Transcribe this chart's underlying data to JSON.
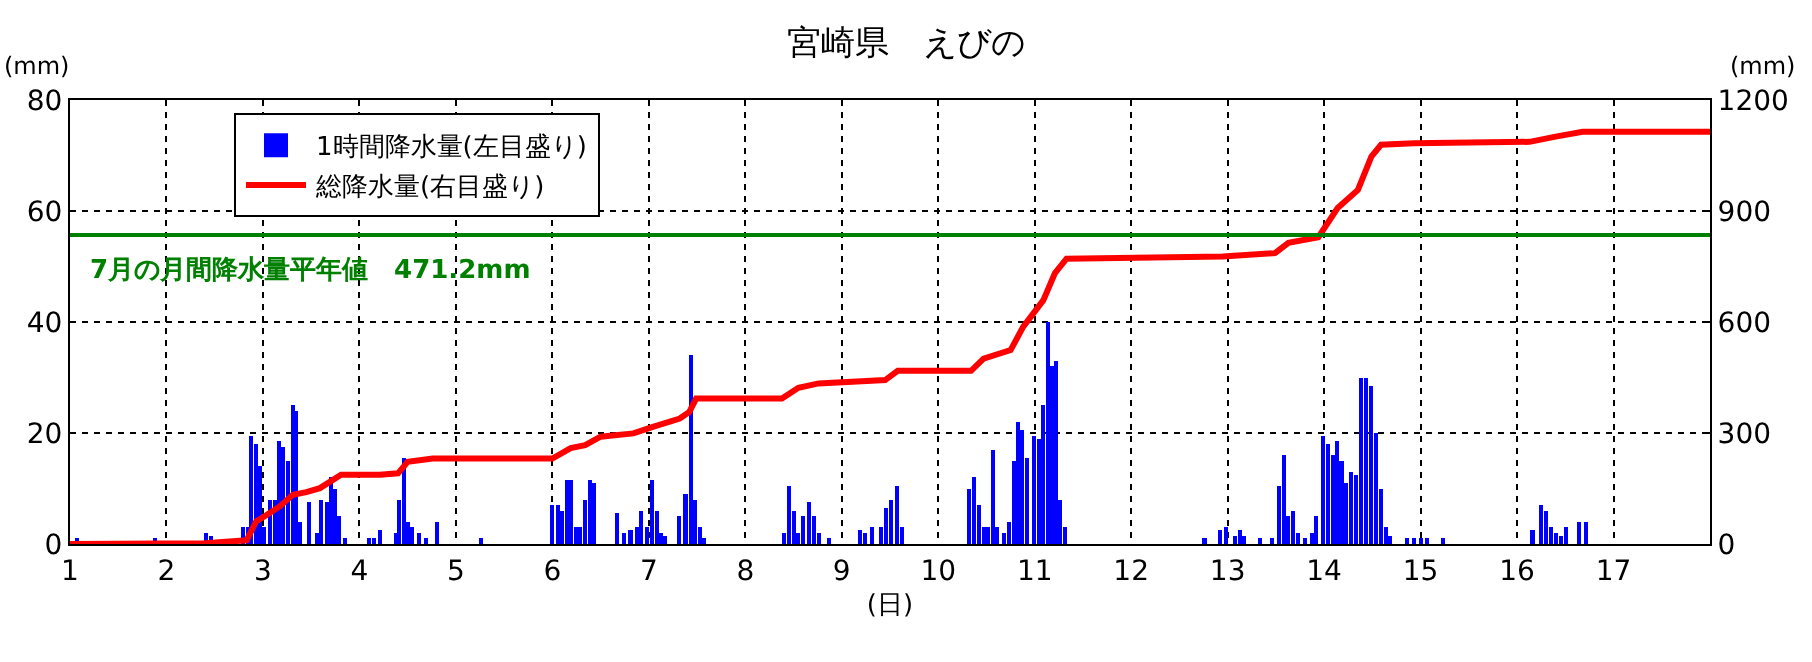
{
  "chart_data": {
    "type": "bar",
    "title": "宮崎県　えびの",
    "xlabel": "(日)",
    "ylabel": "(mm)",
    "y2label": "(mm)",
    "xlim": [
      1,
      18
    ],
    "xticks": [
      1,
      2,
      3,
      4,
      5,
      6,
      7,
      8,
      9,
      10,
      11,
      12,
      13,
      14,
      15,
      16,
      17
    ],
    "ylim": [
      0,
      80
    ],
    "yticks": [
      0,
      20,
      40,
      60,
      80
    ],
    "y2lim": [
      0,
      1200
    ],
    "y2ticks": [
      0,
      300,
      600,
      900,
      1200
    ],
    "grid": true,
    "legend": "top left",
    "ref_lines": [
      {
        "axis": "y2",
        "value": 835,
        "label": "7月の月間降水量平年値　471.2mm",
        "color": "#008000",
        "line_style": "solid"
      }
    ],
    "series": [
      {
        "name": "1時間降水量(左目盛り)",
        "color": "#0000ff",
        "x": [
          1.07,
          1.88,
          2.41,
          2.46,
          2.79,
          2.84,
          2.88,
          2.93,
          2.97,
          3.01,
          3.07,
          3.12,
          3.17,
          3.21,
          3.26,
          3.31,
          3.34,
          3.38,
          3.48,
          3.56,
          3.6,
          3.66,
          3.71,
          3.75,
          3.79,
          3.85,
          4.1,
          4.15,
          4.21,
          4.38,
          4.41,
          4.46,
          4.5,
          4.55,
          4.62,
          4.69,
          4.8,
          5.26,
          6.0,
          6.06,
          6.1,
          6.15,
          6.19,
          6.24,
          6.29,
          6.34,
          6.39,
          6.43,
          6.67,
          6.74,
          6.81,
          6.88,
          6.92,
          6.98,
          7.03,
          7.08,
          7.13,
          7.17,
          7.31,
          7.38,
          7.44,
          7.48,
          7.53,
          7.57,
          8.4,
          8.45,
          8.5,
          8.55,
          8.6,
          8.66,
          8.71,
          8.76,
          8.87,
          9.19,
          9.24,
          9.31,
          9.41,
          9.46,
          9.51,
          9.57,
          9.62,
          10.32,
          10.37,
          10.42,
          10.47,
          10.52,
          10.57,
          10.61,
          10.68,
          10.73,
          10.79,
          10.83,
          10.87,
          10.92,
          10.99,
          11.04,
          11.09,
          11.14,
          11.18,
          11.22,
          11.26,
          11.31,
          12.76,
          12.92,
          12.98,
          13.08,
          13.13,
          13.17,
          13.34,
          13.46,
          13.53,
          13.58,
          13.63,
          13.68,
          13.73,
          13.8,
          13.87,
          13.92,
          13.99,
          14.04,
          14.09,
          14.13,
          14.18,
          14.23,
          14.28,
          14.33,
          14.38,
          14.43,
          14.49,
          14.54,
          14.59,
          14.64,
          14.68,
          14.86,
          14.93,
          15.0,
          15.07,
          15.23,
          16.16,
          16.25,
          16.3,
          16.35,
          16.4,
          16.46,
          16.51,
          16.64,
          16.71
        ],
        "values": [
          1,
          1,
          2,
          1.5,
          3,
          3,
          19.5,
          18,
          14,
          3,
          8,
          8,
          18.5,
          17.5,
          15,
          25,
          24,
          4,
          7.5,
          2,
          8,
          7.5,
          12,
          10,
          5,
          1,
          1,
          1,
          2.5,
          2,
          8,
          15.5,
          4,
          3,
          2,
          1,
          4,
          1,
          7,
          7,
          6,
          11.5,
          11.5,
          3,
          3,
          8,
          11.5,
          11,
          5.5,
          2,
          2.5,
          3,
          6,
          3,
          11.5,
          6,
          2,
          1.5,
          5,
          9,
          34,
          8,
          3,
          1,
          2,
          10.5,
          6,
          2,
          5,
          7.5,
          5,
          2,
          1,
          2.5,
          2,
          3,
          3,
          6.5,
          8,
          10.5,
          3,
          10,
          12,
          7,
          3,
          3,
          17,
          3,
          2,
          4,
          15,
          22,
          20.5,
          15.5,
          19.5,
          19,
          25,
          40,
          32,
          33,
          8,
          3,
          1,
          2.5,
          3,
          1.5,
          2.5,
          1.5,
          1,
          1,
          10.5,
          16,
          5,
          6,
          2,
          1,
          2,
          5,
          19.5,
          18,
          16,
          18.5,
          15,
          11,
          13,
          12.5,
          30,
          30,
          28.5,
          20,
          10,
          3,
          1.5,
          1,
          1,
          1,
          1,
          1,
          2.5,
          7,
          6,
          3,
          2,
          1.5,
          3,
          4,
          4
        ]
      },
      {
        "name": "総降水量(右目盛り)",
        "type": "line",
        "axis": "y2",
        "color": "#ff0000",
        "line_style": "solid",
        "marker": "none",
        "x": [
          1,
          2.4,
          2.83,
          2.93,
          3.03,
          3.17,
          3.31,
          3.45,
          3.59,
          3.81,
          4.21,
          4.4,
          4.5,
          4.76,
          6.0,
          6.19,
          6.34,
          6.5,
          6.84,
          7.05,
          7.32,
          7.42,
          7.49,
          8.38,
          8.55,
          8.76,
          9.45,
          9.58,
          10.34,
          10.47,
          10.75,
          10.88,
          11.09,
          11.21,
          11.33,
          12.95,
          13.49,
          13.63,
          13.94,
          14.14,
          14.35,
          14.49,
          14.59,
          14.93,
          16.13,
          16.4,
          16.68,
          18
        ],
        "values": [
          0,
          2,
          10,
          61,
          77,
          101,
          133,
          140,
          151,
          187,
          187,
          191,
          222,
          231,
          231,
          259,
          267,
          290,
          299,
          317,
          339,
          357,
          393,
          393,
          422,
          434,
          443,
          468,
          468,
          501,
          524,
          587,
          659,
          732,
          771,
          777,
          786,
          814,
          829,
          908,
          957,
          1047,
          1079,
          1083,
          1087,
          1101,
          1114,
          1114
        ]
      }
    ]
  }
}
